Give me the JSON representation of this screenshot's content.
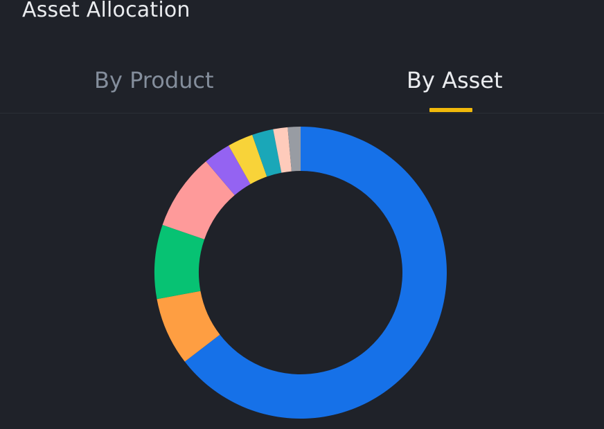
{
  "header": {
    "title": "Asset Allocation"
  },
  "tabs": [
    {
      "label": "By Product",
      "active": false
    },
    {
      "label": "By Asset",
      "active": true
    }
  ],
  "colors": {
    "background": "#1f2229",
    "active_tab_text": "#eaecef",
    "inactive_tab_text": "#848e9c",
    "active_indicator": "#f0b90b"
  },
  "chart_data": {
    "type": "pie",
    "style": "donut",
    "values": [
      68.5,
      8.0,
      8.7,
      9.0,
      3.2,
      3.0,
      2.5,
      1.7,
      1.5
    ],
    "colors": [
      "#1671e8",
      "#fe9e42",
      "#07c273",
      "#fe9a9a",
      "#9463f2",
      "#f8d339",
      "#1aa7b8",
      "#fecbbb",
      "#989ca3"
    ],
    "legend": "none"
  }
}
